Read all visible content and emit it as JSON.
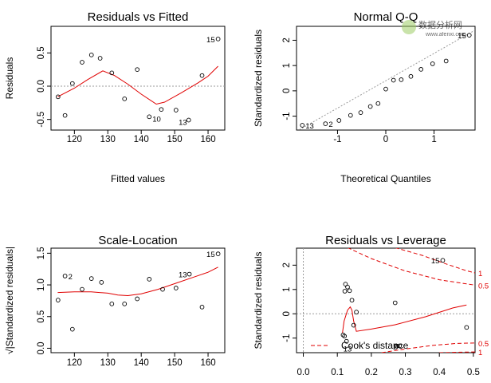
{
  "chart_data": [
    {
      "panel": "residuals-vs-fitted",
      "type": "scatter",
      "title": "Residuals vs Fitted",
      "xlabel": "Fitted values",
      "ylabel": "Residuals",
      "xlim": [
        113,
        165
      ],
      "ylim": [
        -0.66,
        0.9
      ],
      "xticks": [
        120,
        130,
        140,
        150,
        160
      ],
      "yticks": [
        -0.5,
        0.0,
        0.5
      ],
      "ytick_labels": [
        "-0.5",
        "0.0",
        "0.5"
      ],
      "reference_line": 0,
      "points": [
        {
          "x": 115.1,
          "y": -0.16
        },
        {
          "x": 117.2,
          "y": -0.44
        },
        {
          "x": 119.4,
          "y": 0.04
        },
        {
          "x": 122.3,
          "y": 0.36
        },
        {
          "x": 125.1,
          "y": 0.47
        },
        {
          "x": 127.7,
          "y": 0.42
        },
        {
          "x": 131.2,
          "y": 0.2
        },
        {
          "x": 135.0,
          "y": -0.19
        },
        {
          "x": 138.8,
          "y": 0.25
        },
        {
          "x": 142.4,
          "y": -0.46,
          "label": "10"
        },
        {
          "x": 146.0,
          "y": -0.35
        },
        {
          "x": 150.4,
          "y": -0.36
        },
        {
          "x": 154.2,
          "y": -0.51,
          "label": "13"
        },
        {
          "x": 158.2,
          "y": 0.16
        },
        {
          "x": 163.0,
          "y": 0.71,
          "label": "15"
        }
      ],
      "smooth": [
        {
          "x": 115,
          "y": -0.16
        },
        {
          "x": 120,
          "y": -0.03
        },
        {
          "x": 124,
          "y": 0.1
        },
        {
          "x": 128.5,
          "y": 0.23
        },
        {
          "x": 132,
          "y": 0.16
        },
        {
          "x": 136,
          "y": 0.03
        },
        {
          "x": 140,
          "y": -0.12
        },
        {
          "x": 144.5,
          "y": -0.27
        },
        {
          "x": 147,
          "y": -0.24
        },
        {
          "x": 152,
          "y": -0.1
        },
        {
          "x": 157,
          "y": 0.05
        },
        {
          "x": 160,
          "y": 0.15
        },
        {
          "x": 163,
          "y": 0.3
        }
      ]
    },
    {
      "panel": "normal-qq",
      "type": "scatter",
      "title": "Normal Q-Q",
      "xlabel": "Theoretical Quantiles",
      "ylabel": "Standardized residuals",
      "xlim": [
        -1.85,
        1.85
      ],
      "ylim": [
        -1.55,
        2.55
      ],
      "xticks": [
        -1,
        0,
        1
      ],
      "yticks": [
        -1,
        0,
        1,
        2
      ],
      "reference_line": {
        "from": [
          -1.85,
          -1.6
        ],
        "to": [
          1.85,
          2.4
        ]
      },
      "points": [
        {
          "x": -1.73,
          "y": -1.36,
          "label": "13"
        },
        {
          "x": -1.25,
          "y": -1.3,
          "label": "2"
        },
        {
          "x": -0.97,
          "y": -1.17
        },
        {
          "x": -0.73,
          "y": -0.97
        },
        {
          "x": -0.52,
          "y": -0.86
        },
        {
          "x": -0.32,
          "y": -0.62
        },
        {
          "x": -0.16,
          "y": -0.5
        },
        {
          "x": 0.0,
          "y": 0.07
        },
        {
          "x": 0.16,
          "y": 0.42
        },
        {
          "x": 0.32,
          "y": 0.44
        },
        {
          "x": 0.52,
          "y": 0.57
        },
        {
          "x": 0.73,
          "y": 0.85
        },
        {
          "x": 0.97,
          "y": 1.07
        },
        {
          "x": 1.25,
          "y": 1.18
        },
        {
          "x": 1.73,
          "y": 2.2,
          "label": "15"
        }
      ]
    },
    {
      "panel": "scale-location",
      "type": "scatter",
      "title": "Scale-Location",
      "xlabel": "",
      "ylabel": "√|Standardized residuals|",
      "xlim": [
        113,
        165
      ],
      "ylim": [
        -0.07,
        1.58
      ],
      "xticks": [
        120,
        130,
        140,
        150,
        160
      ],
      "yticks": [
        0.0,
        0.5,
        1.0,
        1.5
      ],
      "ytick_labels": [
        "0.0",
        "0.5",
        "1.0",
        "1.5"
      ],
      "points": [
        {
          "x": 115.1,
          "y": 0.76
        },
        {
          "x": 117.2,
          "y": 1.14,
          "label": "2"
        },
        {
          "x": 119.4,
          "y": 0.3
        },
        {
          "x": 122.3,
          "y": 0.93
        },
        {
          "x": 125.1,
          "y": 1.1
        },
        {
          "x": 128.1,
          "y": 1.04
        },
        {
          "x": 131.2,
          "y": 0.7
        },
        {
          "x": 135.0,
          "y": 0.7
        },
        {
          "x": 138.8,
          "y": 0.78
        },
        {
          "x": 142.4,
          "y": 1.09
        },
        {
          "x": 146.4,
          "y": 0.93
        },
        {
          "x": 150.4,
          "y": 0.95
        },
        {
          "x": 154.4,
          "y": 1.17,
          "label": "13"
        },
        {
          "x": 158.2,
          "y": 0.65
        },
        {
          "x": 163.0,
          "y": 1.49,
          "label": "15"
        }
      ],
      "smooth": [
        {
          "x": 115,
          "y": 0.88
        },
        {
          "x": 120,
          "y": 0.89
        },
        {
          "x": 125,
          "y": 0.89
        },
        {
          "x": 130,
          "y": 0.87
        },
        {
          "x": 133,
          "y": 0.84
        },
        {
          "x": 136,
          "y": 0.83
        },
        {
          "x": 140,
          "y": 0.86
        },
        {
          "x": 145,
          "y": 0.93
        },
        {
          "x": 150,
          "y": 1.02
        },
        {
          "x": 155,
          "y": 1.11
        },
        {
          "x": 160,
          "y": 1.2
        },
        {
          "x": 163,
          "y": 1.28
        }
      ]
    },
    {
      "panel": "residuals-vs-leverage",
      "type": "scatter",
      "title": "Residuals vs Leverage",
      "xlabel": "",
      "ylabel": "Standardized residuals",
      "xlim": [
        -0.02,
        0.505
      ],
      "ylim": [
        -1.6,
        2.7
      ],
      "xticks": [
        0.0,
        0.1,
        0.2,
        0.3,
        0.4,
        0.5
      ],
      "xtick_labels": [
        "0.0",
        "0.1",
        "0.2",
        "0.3",
        "0.4",
        "0.5"
      ],
      "yticks": [
        -1,
        0,
        1,
        2
      ],
      "reference_line": 0,
      "points": [
        {
          "x": 0.117,
          "y": -0.87
        },
        {
          "x": 0.121,
          "y": -0.92
        },
        {
          "x": 0.127,
          "y": -1.13
        },
        {
          "x": 0.122,
          "y": 0.93
        },
        {
          "x": 0.124,
          "y": 1.22
        },
        {
          "x": 0.13,
          "y": 1.1
        },
        {
          "x": 0.136,
          "y": 0.95
        },
        {
          "x": 0.143,
          "y": 0.56
        },
        {
          "x": 0.148,
          "y": -0.47
        },
        {
          "x": 0.156,
          "y": 0.07
        },
        {
          "x": 0.27,
          "y": 0.45
        },
        {
          "x": 0.275,
          "y": -1.33
        },
        {
          "x": 0.283,
          "y": -1.32
        },
        {
          "x": 0.48,
          "y": -0.56
        },
        {
          "x": 0.41,
          "y": 2.2,
          "label": "15"
        },
        {
          "x": 0.13,
          "y": -1.42,
          "label": "13"
        },
        {
          "x": 0.27,
          "y": -1.33,
          "label": "2"
        }
      ],
      "smooth": [
        {
          "x": 0.115,
          "y": -0.8
        },
        {
          "x": 0.12,
          "y": -0.3
        },
        {
          "x": 0.13,
          "y": 0.15
        },
        {
          "x": 0.138,
          "y": 0.28
        },
        {
          "x": 0.143,
          "y": 0.15
        },
        {
          "x": 0.148,
          "y": -0.3
        },
        {
          "x": 0.156,
          "y": -0.72
        },
        {
          "x": 0.2,
          "y": -0.63
        },
        {
          "x": 0.27,
          "y": -0.45
        },
        {
          "x": 0.36,
          "y": -0.12
        },
        {
          "x": 0.44,
          "y": 0.24
        },
        {
          "x": 0.48,
          "y": 0.36
        }
      ],
      "cooks_distance_legend": "Cook's distance",
      "contour_labels": [
        {
          "text": "1",
          "value": 1,
          "side": "upper"
        },
        {
          "text": "0.5",
          "value": 0.5,
          "side": "upper"
        },
        {
          "text": "0.5",
          "value": 0.5,
          "side": "lower"
        },
        {
          "text": "1",
          "value": 1,
          "side": "lower"
        }
      ],
      "contours": [
        {
          "level": 1,
          "side": "upper",
          "points": [
            {
              "x": 0.27,
              "y": 2.72
            },
            {
              "x": 0.35,
              "y": 2.4
            },
            {
              "x": 0.42,
              "y": 2.05
            },
            {
              "x": 0.48,
              "y": 1.77
            },
            {
              "x": 0.505,
              "y": 1.68
            }
          ]
        },
        {
          "level": 0.5,
          "side": "upper",
          "points": [
            {
              "x": 0.13,
              "y": 2.72
            },
            {
              "x": 0.2,
              "y": 2.27
            },
            {
              "x": 0.3,
              "y": 1.76
            },
            {
              "x": 0.4,
              "y": 1.4
            },
            {
              "x": 0.48,
              "y": 1.23
            },
            {
              "x": 0.505,
              "y": 1.18
            }
          ]
        },
        {
          "level": 0.5,
          "side": "lower",
          "points": [
            {
              "x": 0.23,
              "y": -1.6
            },
            {
              "x": 0.3,
              "y": -1.45
            },
            {
              "x": 0.38,
              "y": -1.3
            },
            {
              "x": 0.45,
              "y": -1.22
            },
            {
              "x": 0.505,
              "y": -1.2
            }
          ]
        },
        {
          "level": 1,
          "side": "lower",
          "points": [
            {
              "x": 0.4,
              "y": -1.6
            },
            {
              "x": 0.46,
              "y": -1.58
            },
            {
              "x": 0.505,
              "y": -1.57
            }
          ]
        }
      ]
    }
  ],
  "watermark": {
    "text": "数据分析网",
    "url": "www.afenxi.com",
    "color": "#8bc34a"
  },
  "colors": {
    "points": "#000000",
    "smooth": "#e00000",
    "reference": "#9a9a9a",
    "cooks": "#e00000"
  }
}
